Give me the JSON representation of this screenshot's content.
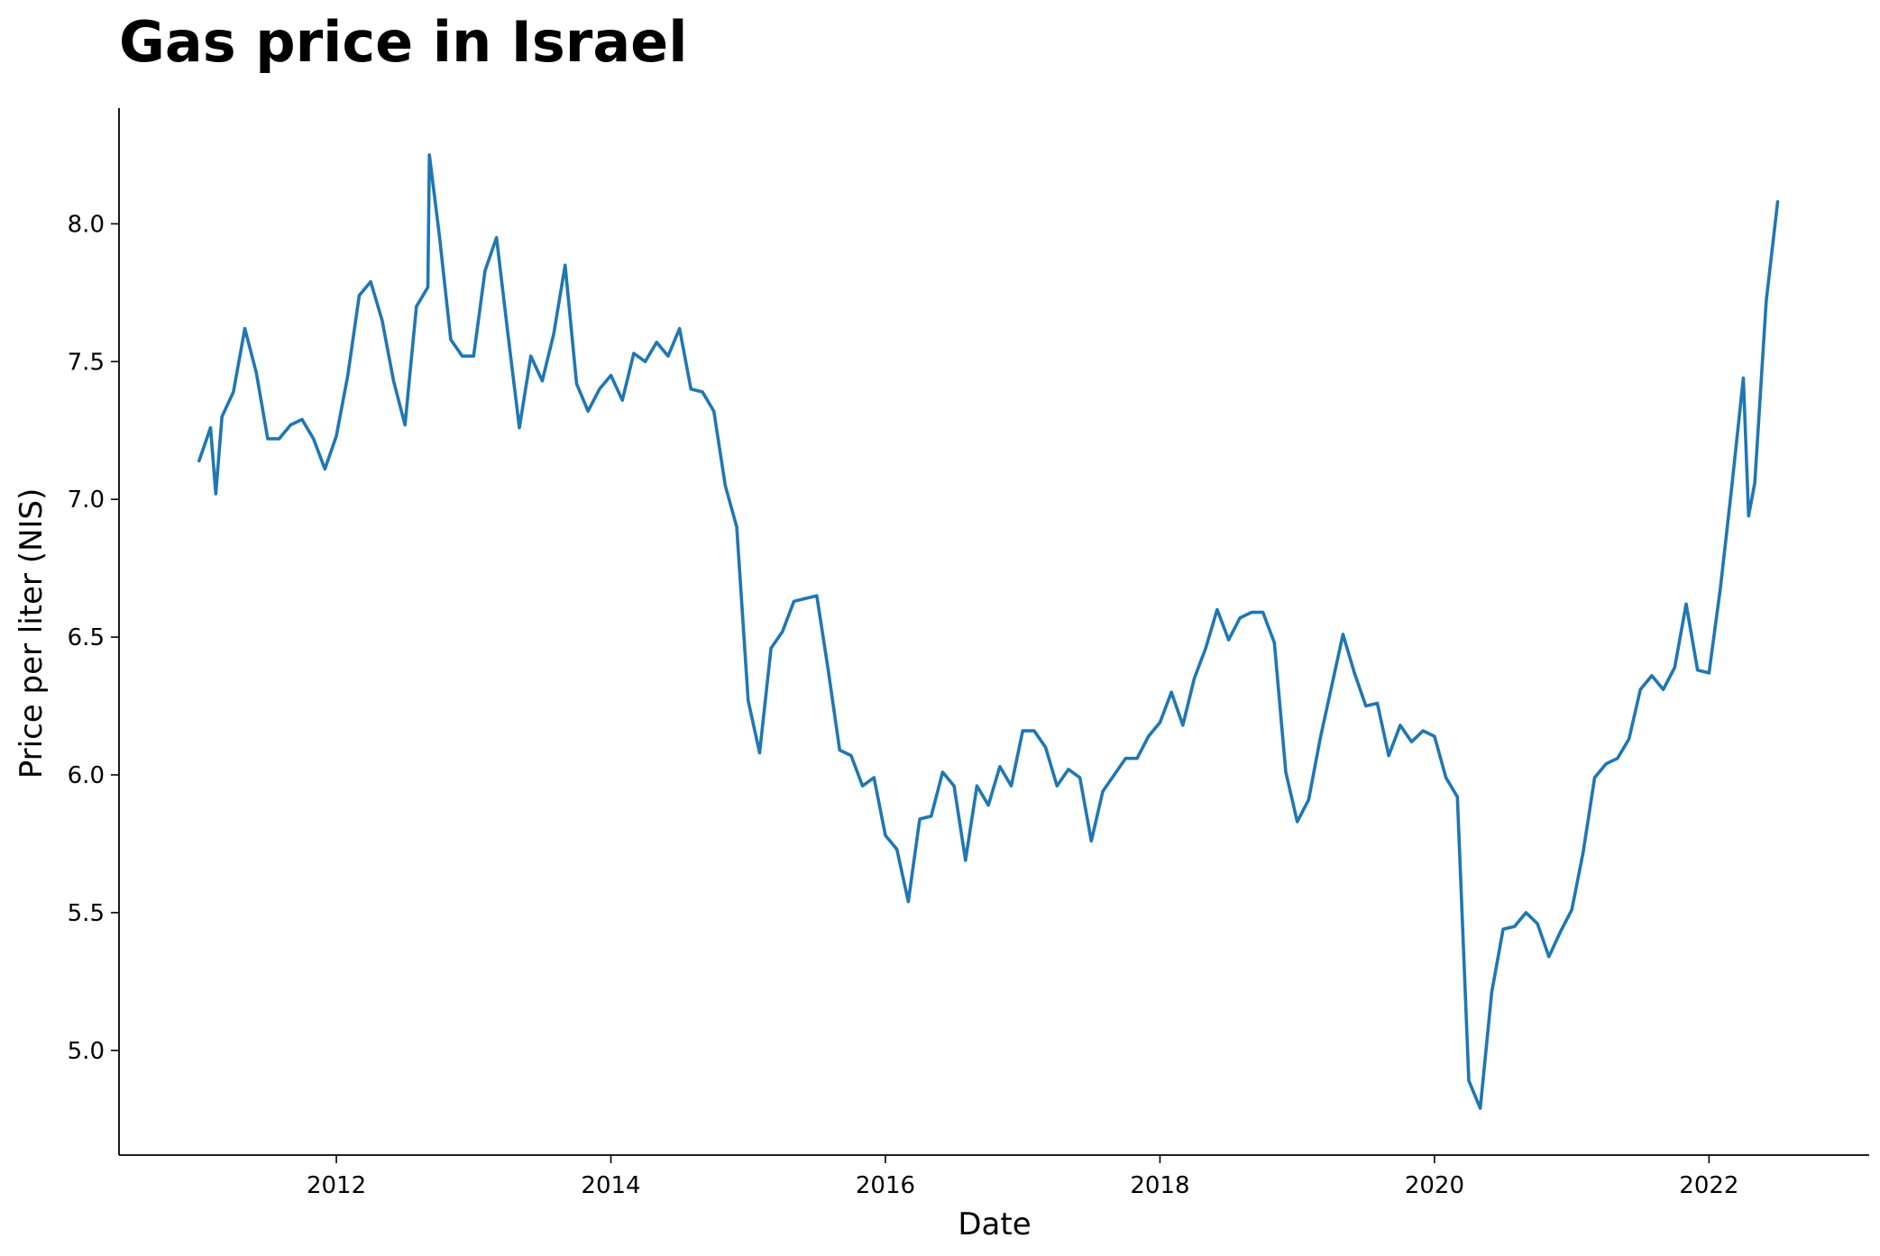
{
  "chart_data": {
    "type": "line",
    "title": "Gas price in Israel",
    "xlabel": "Date",
    "ylabel": "Price per liter (NIS)",
    "x_ticks": [
      "2012",
      "2014",
      "2016",
      "2018",
      "2020",
      "2022"
    ],
    "y_ticks": [
      "5.0",
      "5.5",
      "6.0",
      "6.5",
      "7.0",
      "7.5",
      "8.0"
    ],
    "x_range": [
      "2010-06",
      "2023-03"
    ],
    "y_range": [
      4.62,
      8.42
    ],
    "grid": false,
    "line_color": "#1f77b4",
    "series": [
      {
        "points": [
          [
            "2011-01",
            7.14
          ],
          [
            "2011-02",
            7.26
          ],
          [
            "2011-02-15",
            7.02
          ],
          [
            "2011-03",
            7.3
          ],
          [
            "2011-04",
            7.39
          ],
          [
            "2011-05",
            7.62
          ],
          [
            "2011-06",
            7.46
          ],
          [
            "2011-07",
            7.22
          ],
          [
            "2011-08",
            7.22
          ],
          [
            "2011-09",
            7.27
          ],
          [
            "2011-10",
            7.29
          ],
          [
            "2011-11",
            7.22
          ],
          [
            "2011-12",
            7.11
          ],
          [
            "2012-01",
            7.23
          ],
          [
            "2012-02",
            7.45
          ],
          [
            "2012-03",
            7.74
          ],
          [
            "2012-04",
            7.79
          ],
          [
            "2012-05",
            7.65
          ],
          [
            "2012-06",
            7.43
          ],
          [
            "2012-07",
            7.27
          ],
          [
            "2012-08",
            7.7
          ],
          [
            "2012-09",
            7.77
          ],
          [
            "2012-09-05",
            8.25
          ],
          [
            "2012-10",
            7.96
          ],
          [
            "2012-11",
            7.58
          ],
          [
            "2012-12",
            7.52
          ],
          [
            "2013-01",
            7.52
          ],
          [
            "2013-02",
            7.83
          ],
          [
            "2013-03",
            7.95
          ],
          [
            "2013-04",
            7.6
          ],
          [
            "2013-05",
            7.26
          ],
          [
            "2013-06",
            7.52
          ],
          [
            "2013-07",
            7.43
          ],
          [
            "2013-08",
            7.6
          ],
          [
            "2013-09",
            7.85
          ],
          [
            "2013-10",
            7.42
          ],
          [
            "2013-11",
            7.32
          ],
          [
            "2013-12",
            7.4
          ],
          [
            "2014-01",
            7.45
          ],
          [
            "2014-02",
            7.36
          ],
          [
            "2014-03",
            7.53
          ],
          [
            "2014-04",
            7.5
          ],
          [
            "2014-05",
            7.57
          ],
          [
            "2014-06",
            7.52
          ],
          [
            "2014-07",
            7.62
          ],
          [
            "2014-08",
            7.4
          ],
          [
            "2014-09",
            7.39
          ],
          [
            "2014-10",
            7.32
          ],
          [
            "2014-11",
            7.05
          ],
          [
            "2014-12",
            6.9
          ],
          [
            "2015-01",
            6.27
          ],
          [
            "2015-02",
            6.08
          ],
          [
            "2015-03",
            6.46
          ],
          [
            "2015-04",
            6.52
          ],
          [
            "2015-05",
            6.63
          ],
          [
            "2015-06",
            6.64
          ],
          [
            "2015-07",
            6.65
          ],
          [
            "2015-08",
            6.38
          ],
          [
            "2015-09",
            6.09
          ],
          [
            "2015-10",
            6.07
          ],
          [
            "2015-11",
            5.96
          ],
          [
            "2015-12",
            5.99
          ],
          [
            "2016-01",
            5.78
          ],
          [
            "2016-02",
            5.73
          ],
          [
            "2016-03",
            5.54
          ],
          [
            "2016-04",
            5.84
          ],
          [
            "2016-05",
            5.85
          ],
          [
            "2016-06",
            6.01
          ],
          [
            "2016-07",
            5.96
          ],
          [
            "2016-08",
            5.69
          ],
          [
            "2016-09",
            5.96
          ],
          [
            "2016-10",
            5.89
          ],
          [
            "2016-11",
            6.03
          ],
          [
            "2016-12",
            5.96
          ],
          [
            "2017-01",
            6.16
          ],
          [
            "2017-02",
            6.16
          ],
          [
            "2017-03",
            6.1
          ],
          [
            "2017-04",
            5.96
          ],
          [
            "2017-05",
            6.02
          ],
          [
            "2017-06",
            5.99
          ],
          [
            "2017-07",
            5.76
          ],
          [
            "2017-08",
            5.94
          ],
          [
            "2017-09",
            6.0
          ],
          [
            "2017-10",
            6.06
          ],
          [
            "2017-11",
            6.06
          ],
          [
            "2017-12",
            6.14
          ],
          [
            "2018-01",
            6.19
          ],
          [
            "2018-02",
            6.3
          ],
          [
            "2018-03",
            6.18
          ],
          [
            "2018-04",
            6.35
          ],
          [
            "2018-05",
            6.46
          ],
          [
            "2018-06",
            6.6
          ],
          [
            "2018-07",
            6.49
          ],
          [
            "2018-08",
            6.57
          ],
          [
            "2018-09",
            6.59
          ],
          [
            "2018-10",
            6.59
          ],
          [
            "2018-11",
            6.48
          ],
          [
            "2018-12",
            6.01
          ],
          [
            "2019-01",
            5.83
          ],
          [
            "2019-02",
            5.91
          ],
          [
            "2019-03",
            6.13
          ],
          [
            "2019-04",
            6.32
          ],
          [
            "2019-05",
            6.51
          ],
          [
            "2019-06",
            6.37
          ],
          [
            "2019-07",
            6.25
          ],
          [
            "2019-08",
            6.26
          ],
          [
            "2019-09",
            6.07
          ],
          [
            "2019-10",
            6.18
          ],
          [
            "2019-11",
            6.12
          ],
          [
            "2019-12",
            6.16
          ],
          [
            "2020-01",
            6.14
          ],
          [
            "2020-02",
            5.99
          ],
          [
            "2020-03",
            5.92
          ],
          [
            "2020-04",
            4.89
          ],
          [
            "2020-05",
            4.79
          ],
          [
            "2020-06",
            5.21
          ],
          [
            "2020-07",
            5.44
          ],
          [
            "2020-08",
            5.45
          ],
          [
            "2020-09",
            5.5
          ],
          [
            "2020-10",
            5.46
          ],
          [
            "2020-11",
            5.34
          ],
          [
            "2020-12",
            5.43
          ],
          [
            "2021-01",
            5.51
          ],
          [
            "2021-02",
            5.72
          ],
          [
            "2021-03",
            5.99
          ],
          [
            "2021-04",
            6.04
          ],
          [
            "2021-05",
            6.06
          ],
          [
            "2021-06",
            6.13
          ],
          [
            "2021-07",
            6.31
          ],
          [
            "2021-08",
            6.36
          ],
          [
            "2021-09",
            6.31
          ],
          [
            "2021-10",
            6.39
          ],
          [
            "2021-11",
            6.62
          ],
          [
            "2021-12",
            6.38
          ],
          [
            "2022-01",
            6.37
          ],
          [
            "2022-02",
            6.68
          ],
          [
            "2022-03",
            7.05
          ],
          [
            "2022-04",
            7.44
          ],
          [
            "2022-04-15",
            6.94
          ],
          [
            "2022-05",
            7.06
          ],
          [
            "2022-06",
            7.72
          ],
          [
            "2022-07",
            8.08
          ]
        ]
      }
    ]
  }
}
